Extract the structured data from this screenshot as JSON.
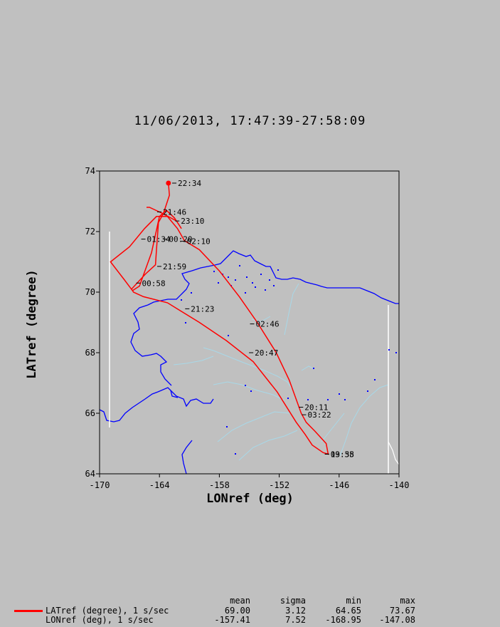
{
  "title": "11/06/2013, 17:47:39-27:58:09",
  "ylabel": "LATref (degree)",
  "xlabel": "LONref (deg)",
  "colors": {
    "background": "#c0c0c0",
    "plot_bg": "#c0c0c0",
    "track": "#ff0000",
    "coast": "#0000ff",
    "rivers": "#a8d8e8",
    "border": "#ffffff"
  },
  "chart_data": {
    "type": "map-track",
    "xlim": [
      -170,
      -140
    ],
    "ylim": [
      64,
      74
    ],
    "xticks": [
      -170,
      -164,
      -158,
      -152,
      -146,
      -140
    ],
    "yticks": [
      64,
      66,
      68,
      70,
      72,
      74
    ],
    "track": [
      [
        -163.1,
        73.6
      ],
      [
        -163.0,
        73.2
      ],
      [
        -163.6,
        72.6
      ],
      [
        -164.1,
        72.3
      ],
      [
        -164.3,
        71.4
      ],
      [
        -164.4,
        70.9
      ],
      [
        -165.4,
        70.6
      ],
      [
        -166.8,
        70.1
      ],
      [
        -166.6,
        70.0
      ],
      [
        -165.6,
        69.85
      ],
      [
        -163.2,
        69.65
      ],
      [
        -160.0,
        69.0
      ],
      [
        -157.3,
        68.4
      ],
      [
        -154.6,
        67.7
      ],
      [
        -152.2,
        66.7
      ],
      [
        -150.3,
        65.7
      ],
      [
        -149.4,
        65.3
      ],
      [
        -148.7,
        64.95
      ],
      [
        -147.6,
        64.7
      ],
      [
        -147.1,
        64.65
      ],
      [
        -147.3,
        65.0
      ],
      [
        -148.4,
        65.4
      ],
      [
        -149.3,
        65.7
      ],
      [
        -149.8,
        66.0
      ],
      [
        -151.0,
        67.1
      ],
      [
        -152.3,
        68.0
      ],
      [
        -154.2,
        69.0
      ],
      [
        -156.0,
        69.85
      ],
      [
        -158.0,
        70.7
      ],
      [
        -160.0,
        71.4
      ],
      [
        -161.5,
        71.7
      ],
      [
        -162.2,
        72.1
      ],
      [
        -163.2,
        72.5
      ],
      [
        -164.3,
        72.5
      ],
      [
        -165.5,
        72.1
      ],
      [
        -167.0,
        71.5
      ],
      [
        -168.9,
        71.0
      ],
      [
        -167.5,
        70.4
      ],
      [
        -166.7,
        70.05
      ],
      [
        -166.0,
        70.2
      ],
      [
        -164.8,
        71.3
      ],
      [
        -164.0,
        72.5
      ],
      [
        -163.3,
        72.7
      ],
      [
        -162.5,
        72.45
      ],
      [
        -161.8,
        72.1
      ],
      [
        -162.3,
        72.35
      ],
      [
        -163.7,
        72.6
      ],
      [
        -165.0,
        72.8
      ],
      [
        -165.3,
        72.8
      ]
    ],
    "time_labels": [
      {
        "text": "22:34",
        "lon": -162.3,
        "lat": 73.6
      },
      {
        "text": "21:46",
        "lon": -163.8,
        "lat": 72.65
      },
      {
        "text": "23:10",
        "lon": -162.0,
        "lat": 72.35
      },
      {
        "text": "01:34",
        "lon": -165.4,
        "lat": 71.75
      },
      {
        "text": "00:20",
        "lon": -163.2,
        "lat": 71.75
      },
      {
        "text": "02:10",
        "lon": -161.4,
        "lat": 71.68
      },
      {
        "text": "21:59",
        "lon": -163.8,
        "lat": 70.85
      },
      {
        "text": "00:58",
        "lon": -165.9,
        "lat": 70.3
      },
      {
        "text": "21:23",
        "lon": -161.0,
        "lat": 69.45
      },
      {
        "text": "02:46",
        "lon": -154.5,
        "lat": 68.95
      },
      {
        "text": "20:47",
        "lon": -154.6,
        "lat": 68.0
      },
      {
        "text": "20:11",
        "lon": -149.6,
        "lat": 66.2
      },
      {
        "text": "03:22",
        "lon": -149.3,
        "lat": 65.95
      },
      {
        "text": "19:35",
        "lon": -147.0,
        "lat": 64.65
      },
      {
        "text": "03:58",
        "lon": -147.0,
        "lat": 64.65
      }
    ],
    "start_marker": {
      "lon": -163.1,
      "lat": 73.6
    }
  },
  "legend": {
    "headers": {
      "mean": "mean",
      "sigma": "sigma",
      "min": "min",
      "max": "max"
    },
    "rows": [
      {
        "label": "LATref (degree), 1 s/sec",
        "mean": "69.00",
        "sigma": "3.12",
        "min": "64.65",
        "max": "73.67"
      },
      {
        "label": "LONref (deg), 1 s/sec",
        "mean": "-157.41",
        "sigma": "7.52",
        "min": "-168.95",
        "max": "-147.08"
      }
    ]
  }
}
